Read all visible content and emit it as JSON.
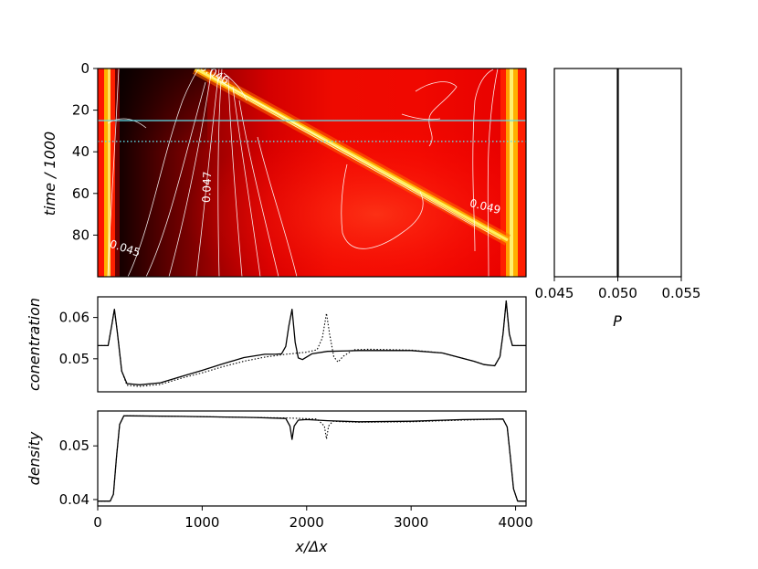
{
  "chart_data": [
    {
      "type": "heatmap",
      "id": "heatmap",
      "ylabel": "time / 1000",
      "xlim": [
        0,
        4100
      ],
      "ylim": [
        100,
        0
      ],
      "yticks": [
        "0",
        "20",
        "40",
        "60",
        "80"
      ],
      "yticks_values": [
        0,
        20,
        40,
        60,
        80
      ],
      "colormap": "hot",
      "hlines": [
        {
          "y": 25,
          "style": "solid",
          "color": "#5fe0ec"
        },
        {
          "y": 35,
          "style": "dotted",
          "color": "#5fe0ec"
        }
      ],
      "contour_labels": [
        {
          "text": "0.045",
          "x": 250,
          "y": 88,
          "rot": 18
        },
        {
          "text": "0.047",
          "x": 1080,
          "y": 57,
          "rot": -88
        },
        {
          "text": "0.049",
          "x": 3700,
          "y": 68,
          "rot": 14
        },
        {
          "text": "0.046",
          "x": 1100,
          "y": 4,
          "rot": 30
        }
      ]
    },
    {
      "type": "line",
      "id": "pressure",
      "xlabel": "P",
      "xlim": [
        0.045,
        0.055
      ],
      "xticks": [
        "0.045",
        "0.050",
        "0.055"
      ],
      "xticks_values": [
        0.045,
        0.05,
        0.055
      ],
      "series": [
        {
          "style": "solid",
          "x": [
            0.05,
            0.05,
            0.05,
            0.05,
            0.05,
            0.05
          ],
          "y": [
            0,
            20,
            40,
            60,
            80,
            100
          ]
        }
      ]
    },
    {
      "type": "line",
      "id": "concentration",
      "ylabel": "conentration",
      "xlim": [
        0,
        4100
      ],
      "ylim": [
        0.042,
        0.065
      ],
      "yticks": [
        "0.05",
        "0.06"
      ],
      "yticks_values": [
        0.05,
        0.06
      ],
      "series": [
        {
          "style": "solid",
          "x": [
            0,
            100,
            130,
            160,
            190,
            230,
            280,
            400,
            600,
            800,
            1000,
            1200,
            1400,
            1600,
            1700,
            1760,
            1800,
            1830,
            1860,
            1890,
            1920,
            1960,
            2050,
            2200,
            2500,
            3000,
            3300,
            3600,
            3700,
            3800,
            3850,
            3880,
            3910,
            3940,
            3970,
            4000,
            4100
          ],
          "y": [
            0.0532,
            0.0532,
            0.0575,
            0.062,
            0.056,
            0.047,
            0.044,
            0.0437,
            0.0442,
            0.0457,
            0.0472,
            0.0488,
            0.0503,
            0.0511,
            0.0511,
            0.0512,
            0.053,
            0.058,
            0.062,
            0.054,
            0.0502,
            0.0498,
            0.0512,
            0.0518,
            0.052,
            0.052,
            0.0514,
            0.0494,
            0.0486,
            0.0483,
            0.0505,
            0.056,
            0.064,
            0.056,
            0.0532,
            0.0532,
            0.0532
          ]
        },
        {
          "style": "dotted",
          "x": [
            0,
            100,
            130,
            160,
            190,
            230,
            280,
            400,
            600,
            800,
            1000,
            1200,
            1400,
            1600,
            1800,
            2000,
            2100,
            2150,
            2190,
            2220,
            2260,
            2300,
            2350,
            2450,
            2600,
            3000,
            3300,
            3600,
            3700,
            3800,
            3850,
            3880,
            3910,
            3940,
            3970,
            4000,
            4100
          ],
          "y": [
            0.0532,
            0.0532,
            0.0575,
            0.062,
            0.056,
            0.047,
            0.0436,
            0.0433,
            0.0438,
            0.0453,
            0.0466,
            0.0481,
            0.0494,
            0.0504,
            0.0511,
            0.0516,
            0.0522,
            0.055,
            0.061,
            0.056,
            0.0505,
            0.0492,
            0.0506,
            0.0522,
            0.0523,
            0.0521,
            0.0514,
            0.0494,
            0.0486,
            0.0483,
            0.0505,
            0.056,
            0.064,
            0.056,
            0.0532,
            0.0532,
            0.0532
          ]
        }
      ]
    },
    {
      "type": "line",
      "id": "density",
      "ylabel": "density",
      "xlabel": "x/Δx",
      "xlim": [
        0,
        4100
      ],
      "ylim": [
        0.0388,
        0.0565
      ],
      "yticks": [
        "0.04",
        "0.05"
      ],
      "yticks_values": [
        0.04,
        0.05
      ],
      "xticks": [
        "0",
        "1000",
        "2000",
        "3000",
        "4000"
      ],
      "xticks_values": [
        0,
        1000,
        2000,
        3000,
        4000
      ],
      "series": [
        {
          "style": "solid",
          "x": [
            0,
            120,
            150,
            180,
            210,
            250,
            300,
            800,
            1500,
            1800,
            1840,
            1860,
            1880,
            1920,
            2000,
            2200,
            2500,
            3000,
            3500,
            3880,
            3920,
            3950,
            3980,
            4020,
            4100
          ],
          "y": [
            0.0397,
            0.0397,
            0.041,
            0.048,
            0.054,
            0.0556,
            0.0556,
            0.0555,
            0.0553,
            0.0551,
            0.0537,
            0.0512,
            0.0537,
            0.0548,
            0.0549,
            0.0547,
            0.0545,
            0.0546,
            0.0549,
            0.055,
            0.0535,
            0.048,
            0.042,
            0.0397,
            0.0397
          ]
        },
        {
          "style": "dotted",
          "x": [
            0,
            120,
            150,
            180,
            210,
            250,
            300,
            800,
            1500,
            1800,
            2100,
            2170,
            2190,
            2210,
            2250,
            2350,
            2500,
            3000,
            3500,
            3880,
            3920,
            3950,
            3980,
            4020,
            4100
          ],
          "y": [
            0.0397,
            0.0397,
            0.041,
            0.048,
            0.054,
            0.0556,
            0.0556,
            0.0555,
            0.0553,
            0.0552,
            0.055,
            0.0537,
            0.0513,
            0.0537,
            0.0546,
            0.0545,
            0.0544,
            0.0545,
            0.0548,
            0.055,
            0.0535,
            0.048,
            0.042,
            0.0397,
            0.0397
          ]
        }
      ]
    }
  ]
}
